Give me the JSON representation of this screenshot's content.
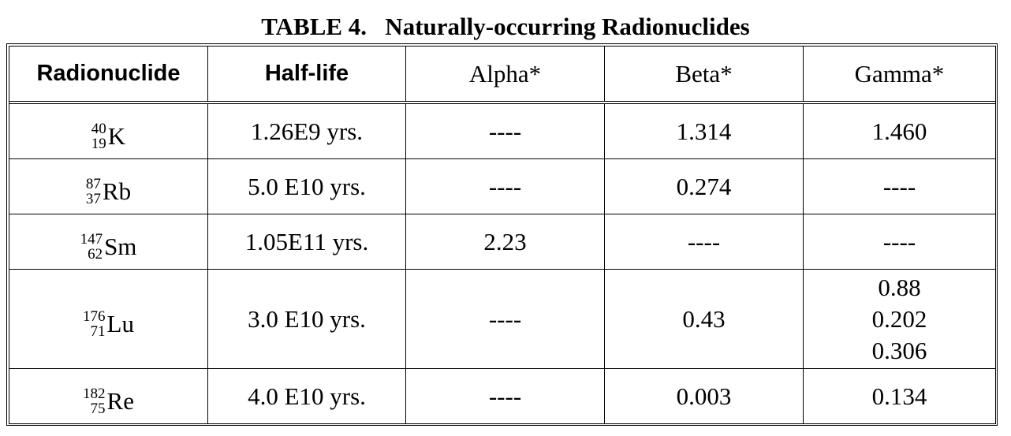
{
  "title": "TABLE 4.   Naturally-occurring Radionuclides",
  "headers": {
    "radionuclide": "Radionuclide",
    "half_life": "Half-life",
    "alpha": "Alpha*",
    "beta": "Beta*",
    "gamma": "Gamma*"
  },
  "rows": [
    {
      "mass": "40",
      "atomic": "19",
      "symbol": "K",
      "half_life": "1.26E9 yrs.",
      "alpha": "----",
      "beta": "1.314",
      "gamma": [
        "1.460"
      ]
    },
    {
      "mass": "87",
      "atomic": "37",
      "symbol": "Rb",
      "half_life": "5.0 E10 yrs.",
      "alpha": "----",
      "beta": "0.274",
      "gamma": [
        "----"
      ]
    },
    {
      "mass": "147",
      "atomic": "62",
      "symbol": "Sm",
      "half_life": "1.05E11 yrs.",
      "alpha": "2.23",
      "beta": "----",
      "gamma": [
        "----"
      ]
    },
    {
      "mass": "176",
      "atomic": "71",
      "symbol": "Lu",
      "half_life": "3.0 E10 yrs.",
      "alpha": "----",
      "beta": "0.43",
      "gamma": [
        "0.88",
        "0.202",
        "0.306"
      ]
    },
    {
      "mass": "182",
      "atomic": "75",
      "symbol": "Re",
      "half_life": "4.0 E10 yrs.",
      "alpha": "----",
      "beta": "0.003",
      "gamma": [
        "0.134"
      ]
    }
  ]
}
